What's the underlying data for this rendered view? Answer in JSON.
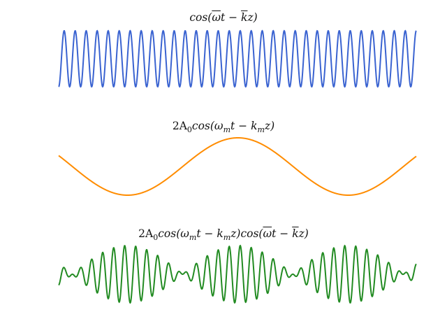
{
  "chart_data": [
    {
      "type": "line",
      "title": "cos(ω̅t − k̅z)",
      "series": [
        {
          "formula": "cos(omega_bar * t - k_bar * z)",
          "color": "#3a63d1",
          "cycles": 32.5,
          "phase_deg": 90
        }
      ],
      "ylim": [
        -1,
        1
      ],
      "grid": false,
      "axes": "off"
    },
    {
      "type": "line",
      "title": "2A₀cos(ωₘt − kₘz)",
      "series": [
        {
          "formula": "2*A0*cos(omega_m * t - k_m * z)",
          "color": "#ff8c00",
          "cycles": 1.62,
          "start_value": 0.38
        }
      ],
      "ylim": [
        -1,
        1
      ],
      "grid": false,
      "axes": "off"
    },
    {
      "type": "line",
      "title": "2A₀cos(ωₘt − kₘz)cos(ω̅t − k̅z)",
      "series": [
        {
          "formula": "2*A0*cos(omega_m*t - k_m*z) * cos(omega_bar*t - k_bar*z)",
          "color": "#228b22",
          "envelope_cycles": 1.62,
          "carrier_cycles": 32.5
        }
      ],
      "ylim": [
        -1,
        1
      ],
      "grid": false,
      "axes": "off"
    }
  ],
  "titles": {
    "top": {
      "a": "cos(",
      "w": "ω",
      "b": "t − ",
      "k": "k",
      "c": "z)"
    },
    "middle": {
      "a": "2A",
      "a_sub": "0",
      "b": "cos(ω",
      "b_sub": "m",
      "c": "t − k",
      "c_sub": "m",
      "d": "z)"
    },
    "bottom": {
      "a": "2A",
      "a_sub": "0",
      "b": "cos(ω",
      "b_sub": "m",
      "c": "t − k",
      "c_sub": "m",
      "d": "z)cos(",
      "w": "ω",
      "e": "t − ",
      "k": "k",
      "f": "z)"
    }
  }
}
